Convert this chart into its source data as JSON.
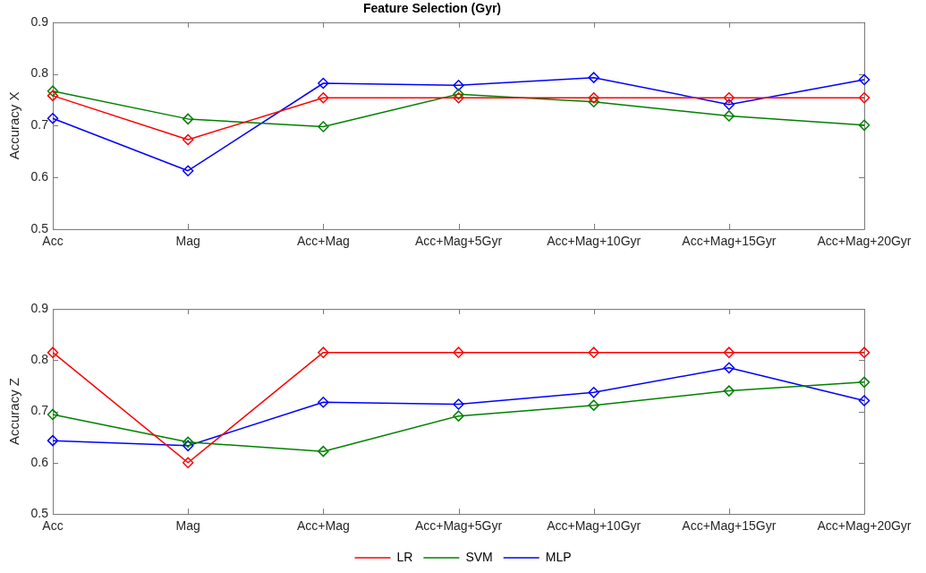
{
  "chart_data": [
    {
      "type": "line",
      "title": "Feature Selection (Gyr)",
      "ylabel": "Accuracy X",
      "categories": [
        "Acc",
        "Mag",
        "Acc+Mag",
        "Acc+Mag+5Gyr",
        "Acc+Mag+10Gyr",
        "Acc+Mag+15Gyr",
        "Acc+Mag+20Gyr"
      ],
      "series": [
        {
          "color": "#ff0000",
          "values": [
            0.758,
            0.673,
            0.754,
            0.754,
            0.754,
            0.754,
            0.754
          ]
        },
        {
          "color": "#008000",
          "values": [
            0.767,
            0.713,
            0.698,
            0.761,
            0.746,
            0.719,
            0.701
          ]
        },
        {
          "color": "#0000ff",
          "values": [
            0.714,
            0.613,
            0.782,
            0.778,
            0.793,
            0.741,
            0.789
          ]
        }
      ],
      "ylim": [
        0.5,
        0.9
      ],
      "yticks": [
        0.5,
        0.6,
        0.7,
        0.8,
        0.9
      ],
      "marker": "diamond"
    },
    {
      "type": "line",
      "ylabel": "Accuracy Z",
      "categories": [
        "Acc",
        "Mag",
        "Acc+Mag",
        "Acc+Mag+5Gyr",
        "Acc+Mag+10Gyr",
        "Acc+Mag+15Gyr",
        "Acc+Mag+20Gyr"
      ],
      "series": [
        {
          "name": "LR",
          "color": "#ff0000",
          "values": [
            0.815,
            0.6,
            0.815,
            0.815,
            0.815,
            0.815,
            0.815
          ]
        },
        {
          "name": "SVM",
          "color": "#008000",
          "values": [
            0.694,
            0.64,
            0.622,
            0.691,
            0.712,
            0.74,
            0.757
          ]
        },
        {
          "name": "MLP",
          "color": "#0000ff",
          "values": [
            0.643,
            0.633,
            0.718,
            0.714,
            0.737,
            0.785,
            0.721
          ]
        }
      ],
      "ylim": [
        0.5,
        0.9
      ],
      "yticks": [
        0.5,
        0.6,
        0.7,
        0.8,
        0.9
      ],
      "marker": "diamond",
      "legend": "bottom"
    }
  ]
}
